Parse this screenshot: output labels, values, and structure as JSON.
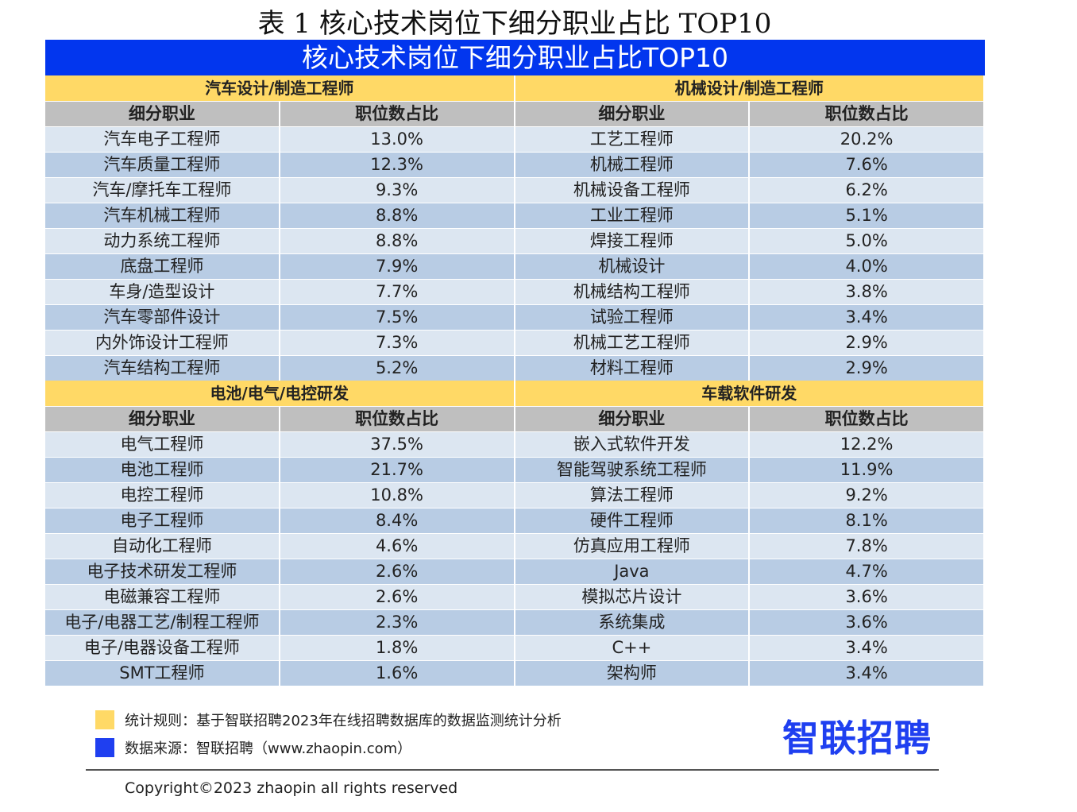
{
  "title": "表 1  核心技术岗位下细分职业占比 TOP10",
  "banner": "核心技术岗位下细分职业占比TOP10",
  "col_headers": [
    "细分职业",
    "职位数占比"
  ],
  "blocks": [
    {
      "sections": [
        {
          "name": "汽车设计/制造工程师",
          "rows": [
            [
              "汽车电子工程师",
              "13.0%"
            ],
            [
              "汽车质量工程师",
              "12.3%"
            ],
            [
              "汽车/摩托车工程师",
              "9.3%"
            ],
            [
              "汽车机械工程师",
              "8.8%"
            ],
            [
              "动力系统工程师",
              "8.8%"
            ],
            [
              "底盘工程师",
              "7.9%"
            ],
            [
              "车身/造型设计",
              "7.7%"
            ],
            [
              "汽车零部件设计",
              "7.5%"
            ],
            [
              "内外饰设计工程师",
              "7.3%"
            ],
            [
              "汽车结构工程师",
              "5.2%"
            ]
          ]
        },
        {
          "name": "机械设计/制造工程师",
          "rows": [
            [
              "工艺工程师",
              "20.2%"
            ],
            [
              "机械工程师",
              "7.6%"
            ],
            [
              "机械设备工程师",
              "6.2%"
            ],
            [
              "工业工程师",
              "5.1%"
            ],
            [
              "焊接工程师",
              "5.0%"
            ],
            [
              "机械设计",
              "4.0%"
            ],
            [
              "机械结构工程师",
              "3.8%"
            ],
            [
              "试验工程师",
              "3.4%"
            ],
            [
              "机械工艺工程师",
              "2.9%"
            ],
            [
              "材料工程师",
              "2.9%"
            ]
          ]
        }
      ]
    },
    {
      "sections": [
        {
          "name": "电池/电气/电控研发",
          "rows": [
            [
              "电气工程师",
              "37.5%"
            ],
            [
              "电池工程师",
              "21.7%"
            ],
            [
              "电控工程师",
              "10.8%"
            ],
            [
              "电子工程师",
              "8.4%"
            ],
            [
              "自动化工程师",
              "4.6%"
            ],
            [
              "电子技术研发工程师",
              "2.6%"
            ],
            [
              "电磁兼容工程师",
              "2.6%"
            ],
            [
              "电子/电器工艺/制程工程师",
              "2.3%"
            ],
            [
              "电子/电器设备工程师",
              "1.8%"
            ],
            [
              "SMT工程师",
              "1.6%"
            ]
          ]
        },
        {
          "name": "车载软件研发",
          "rows": [
            [
              "嵌入式软件开发",
              "12.2%"
            ],
            [
              "智能驾驶系统工程师",
              "11.9%"
            ],
            [
              "算法工程师",
              "9.2%"
            ],
            [
              "硬件工程师",
              "8.1%"
            ],
            [
              "仿真应用工程师",
              "7.8%"
            ],
            [
              "Java",
              "4.7%"
            ],
            [
              "模拟芯片设计",
              "3.6%"
            ],
            [
              "系统集成",
              "3.6%"
            ],
            [
              "C++",
              "3.4%"
            ],
            [
              "架构师",
              "3.4%"
            ]
          ]
        }
      ]
    }
  ],
  "legend": [
    {
      "text": "统计规则：基于智联招聘2023年在线招聘数据库的数据监测统计分析",
      "color": "#ffd966"
    },
    {
      "text": "数据来源：智联招聘（www.zhaopin.com）",
      "color": "#1f3ff0"
    }
  ],
  "logo": "智联招聘",
  "copyright": "Copyright©2023 zhaopin all rights reserved"
}
